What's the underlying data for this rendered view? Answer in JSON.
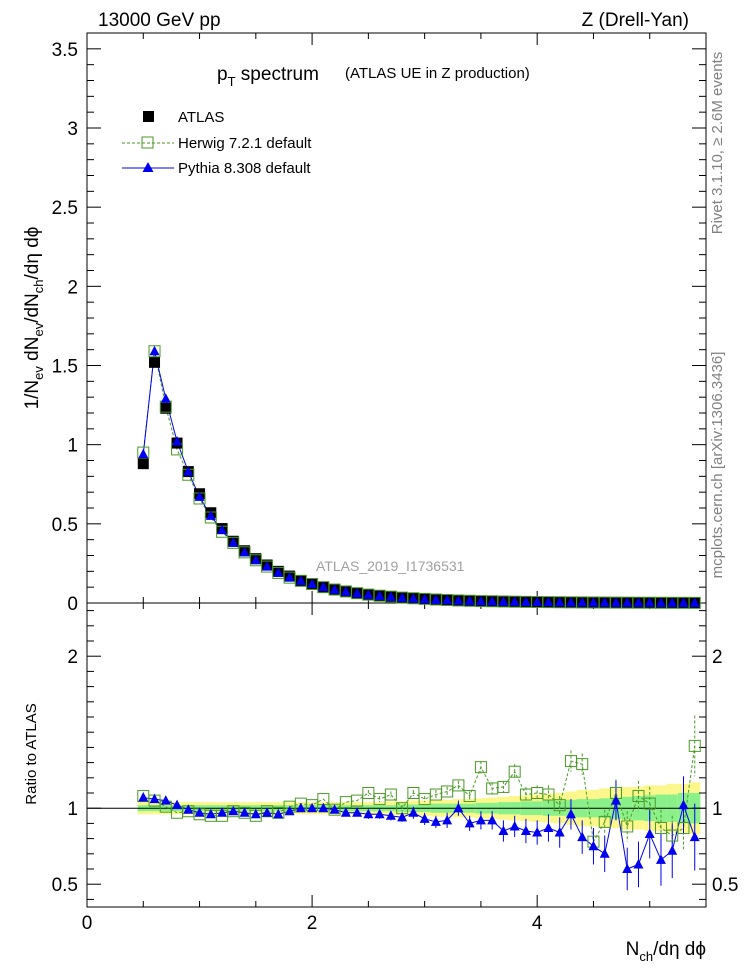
{
  "header": {
    "energy": "13000 GeV pp",
    "process": "Z (Drell-Yan)"
  },
  "side": {
    "rivet": "Rivet 3.1.10, ≥ 2.6M events",
    "mcplots": "mcplots.cern.ch [arXiv:1306.3436]"
  },
  "chart_data": {
    "type": "scatter",
    "title_main": "p",
    "title_sub": "T",
    "title_rest": " spectrum",
    "title_note": "(ATLAS UE in Z production)",
    "analysis_label": "ATLAS_2019_I1736531",
    "xlabel": "N",
    "xlabel_sub": "ch",
    "xlabel_rest": "/dη dϕ",
    "ylabel": "1/N",
    "ylabel_sub1": "ev",
    "ylabel_mid": " dN",
    "ylabel_sub2": "ev",
    "ylabel_mid2": "/dN",
    "ylabel_sub3": "ch",
    "ylabel_rest": "/dη dϕ",
    "ratio_ylabel": "Ratio to ATLAS",
    "xlim": [
      0,
      5.5
    ],
    "ylim_main": [
      0,
      3.6
    ],
    "ylim_ratio": [
      0.35,
      2.35
    ],
    "x_ticks": [
      "0",
      "2",
      "4"
    ],
    "y_ticks_main": [
      "0",
      "0.5",
      "1",
      "1.5",
      "2",
      "2.5",
      "3",
      "3.5"
    ],
    "y_ticks_ratio": [
      "0.5",
      "1",
      "2"
    ],
    "legend": [
      {
        "name": "ATLAS",
        "marker": "square-filled",
        "color": "#000000"
      },
      {
        "name": "Herwig 7.2.1 default",
        "marker": "square-open",
        "color": "#4a9a26"
      },
      {
        "name": "Pythia 8.308 default",
        "marker": "triangle",
        "color": "#0000ee"
      }
    ],
    "x": [
      0.5,
      0.6,
      0.7,
      0.8,
      0.9,
      1.0,
      1.1,
      1.2,
      1.3,
      1.4,
      1.5,
      1.6,
      1.7,
      1.8,
      1.9,
      2.0,
      2.1,
      2.2,
      2.3,
      2.4,
      2.5,
      2.6,
      2.7,
      2.8,
      2.9,
      3.0,
      3.1,
      3.2,
      3.3,
      3.4,
      3.5,
      3.6,
      3.7,
      3.8,
      3.9,
      4.0,
      4.1,
      4.2,
      4.3,
      4.4,
      4.5,
      4.6,
      4.7,
      4.8,
      4.9,
      5.0,
      5.1,
      5.2,
      5.3,
      5.4
    ],
    "atlas": [
      0.88,
      1.52,
      1.23,
      1.01,
      0.83,
      0.69,
      0.57,
      0.47,
      0.39,
      0.33,
      0.28,
      0.24,
      0.2,
      0.17,
      0.14,
      0.12,
      0.1,
      0.085,
      0.073,
      0.062,
      0.053,
      0.046,
      0.04,
      0.034,
      0.03,
      0.026,
      0.022,
      0.019,
      0.016,
      0.014,
      0.012,
      0.011,
      0.0095,
      0.0083,
      0.0072,
      0.0063,
      0.0055,
      0.0048,
      0.0042,
      0.0037,
      0.0032,
      0.0028,
      0.0024,
      0.0021,
      0.0018,
      0.0016,
      0.0014,
      0.0012,
      0.0011,
      0.0009
    ],
    "herwig": [
      0.95,
      1.59,
      1.24,
      0.97,
      0.81,
      0.66,
      0.54,
      0.45,
      0.38,
      0.32,
      0.27,
      0.23,
      0.19,
      0.16,
      0.14,
      0.12,
      0.1,
      0.085,
      0.073,
      0.062,
      0.053,
      0.046,
      0.04,
      0.034,
      0.03,
      0.026,
      0.022,
      0.019,
      0.016,
      0.014,
      0.012,
      0.011,
      0.0095,
      0.0083,
      0.0072,
      0.0063,
      0.0055,
      0.0048,
      0.0042,
      0.0037,
      0.0032,
      0.0028,
      0.0024,
      0.0021,
      0.0018,
      0.0016,
      0.0014,
      0.0012,
      0.0011,
      0.0009
    ],
    "pythia": [
      0.94,
      1.59,
      1.29,
      1.02,
      0.83,
      0.67,
      0.55,
      0.46,
      0.38,
      0.32,
      0.27,
      0.23,
      0.19,
      0.16,
      0.14,
      0.12,
      0.1,
      0.084,
      0.071,
      0.06,
      0.051,
      0.044,
      0.038,
      0.032,
      0.028,
      0.024,
      0.02,
      0.017,
      0.015,
      0.013,
      0.011,
      0.0095,
      0.008,
      0.007,
      0.006,
      0.0053,
      0.0046,
      0.004,
      0.0035,
      0.003,
      0.0026,
      0.0022,
      0.0019,
      0.0016,
      0.0014,
      0.0012,
      0.0011,
      0.0009,
      0.0008,
      0.0007
    ],
    "herwig_ratio": [
      1.08,
      1.05,
      1.01,
      0.97,
      0.98,
      0.96,
      0.95,
      0.95,
      0.98,
      0.97,
      0.95,
      0.98,
      0.97,
      1.01,
      1.03,
      1.02,
      1.06,
      0.99,
      1.04,
      1.05,
      1.1,
      1.06,
      1.09,
      1.0,
      1.1,
      1.06,
      1.09,
      1.11,
      1.15,
      1.08,
      1.27,
      1.13,
      1.14,
      1.24,
      1.09,
      1.1,
      1.09,
      1.02,
      1.31,
      1.29,
      0.78,
      0.91,
      1.1,
      0.88,
      1.08,
      1.03,
      0.87,
      0.82,
      0.87,
      1.41
    ],
    "herwig_err": [
      0.01,
      0.01,
      0.01,
      0.01,
      0.01,
      0.01,
      0.01,
      0.01,
      0.01,
      0.01,
      0.01,
      0.01,
      0.01,
      0.01,
      0.01,
      0.01,
      0.01,
      0.01,
      0.01,
      0.01,
      0.02,
      0.02,
      0.02,
      0.02,
      0.02,
      0.02,
      0.03,
      0.03,
      0.03,
      0.03,
      0.04,
      0.04,
      0.04,
      0.05,
      0.05,
      0.05,
      0.06,
      0.06,
      0.07,
      0.07,
      0.08,
      0.08,
      0.09,
      0.1,
      0.1,
      0.11,
      0.12,
      0.13,
      0.14,
      0.2
    ],
    "pythia_ratio": [
      1.07,
      1.06,
      1.05,
      1.02,
      0.99,
      0.97,
      0.96,
      0.97,
      0.98,
      0.97,
      0.96,
      0.97,
      0.96,
      0.98,
      1.0,
      1.0,
      1.0,
      0.99,
      0.97,
      0.97,
      0.96,
      0.96,
      0.95,
      0.94,
      0.97,
      0.93,
      0.91,
      0.92,
      1.0,
      0.9,
      0.92,
      0.92,
      0.85,
      0.88,
      0.85,
      0.84,
      0.87,
      0.84,
      0.96,
      0.81,
      0.75,
      0.7,
      1.05,
      0.6,
      0.63,
      0.83,
      0.66,
      0.72,
      1.02,
      0.81
    ],
    "pythia_err": [
      0.01,
      0.01,
      0.01,
      0.01,
      0.01,
      0.01,
      0.01,
      0.01,
      0.01,
      0.01,
      0.01,
      0.01,
      0.01,
      0.01,
      0.01,
      0.01,
      0.02,
      0.02,
      0.02,
      0.02,
      0.03,
      0.03,
      0.03,
      0.03,
      0.04,
      0.04,
      0.04,
      0.05,
      0.05,
      0.05,
      0.06,
      0.06,
      0.07,
      0.07,
      0.08,
      0.08,
      0.09,
      0.1,
      0.1,
      0.11,
      0.12,
      0.12,
      0.13,
      0.14,
      0.15,
      0.16,
      0.17,
      0.18,
      0.19,
      0.22
    ],
    "band_inner": [
      0.02,
      0.02,
      0.02,
      0.02,
      0.02,
      0.02,
      0.02,
      0.02,
      0.02,
      0.02,
      0.02,
      0.02,
      0.02,
      0.02,
      0.02,
      0.02,
      0.02,
      0.02,
      0.02,
      0.02,
      0.02,
      0.02,
      0.02,
      0.025,
      0.025,
      0.025,
      0.03,
      0.03,
      0.03,
      0.03,
      0.035,
      0.035,
      0.04,
      0.04,
      0.045,
      0.045,
      0.05,
      0.05,
      0.055,
      0.06,
      0.06,
      0.065,
      0.07,
      0.075,
      0.08,
      0.085,
      0.09,
      0.09,
      0.1,
      0.1
    ],
    "band_outer": [
      0.04,
      0.04,
      0.04,
      0.04,
      0.04,
      0.04,
      0.04,
      0.04,
      0.04,
      0.04,
      0.04,
      0.04,
      0.04,
      0.04,
      0.04,
      0.04,
      0.04,
      0.04,
      0.04,
      0.04,
      0.04,
      0.04,
      0.045,
      0.045,
      0.05,
      0.05,
      0.055,
      0.055,
      0.06,
      0.06,
      0.065,
      0.07,
      0.075,
      0.08,
      0.085,
      0.09,
      0.095,
      0.1,
      0.11,
      0.12,
      0.12,
      0.13,
      0.13,
      0.14,
      0.14,
      0.15,
      0.15,
      0.16,
      0.16,
      0.17
    ],
    "colors": {
      "atlas": "#000000",
      "herwig": "#4a9a26",
      "pythia": "#0000ee",
      "band_inner": "#8af08a",
      "band_outer": "#fbf78a"
    }
  }
}
